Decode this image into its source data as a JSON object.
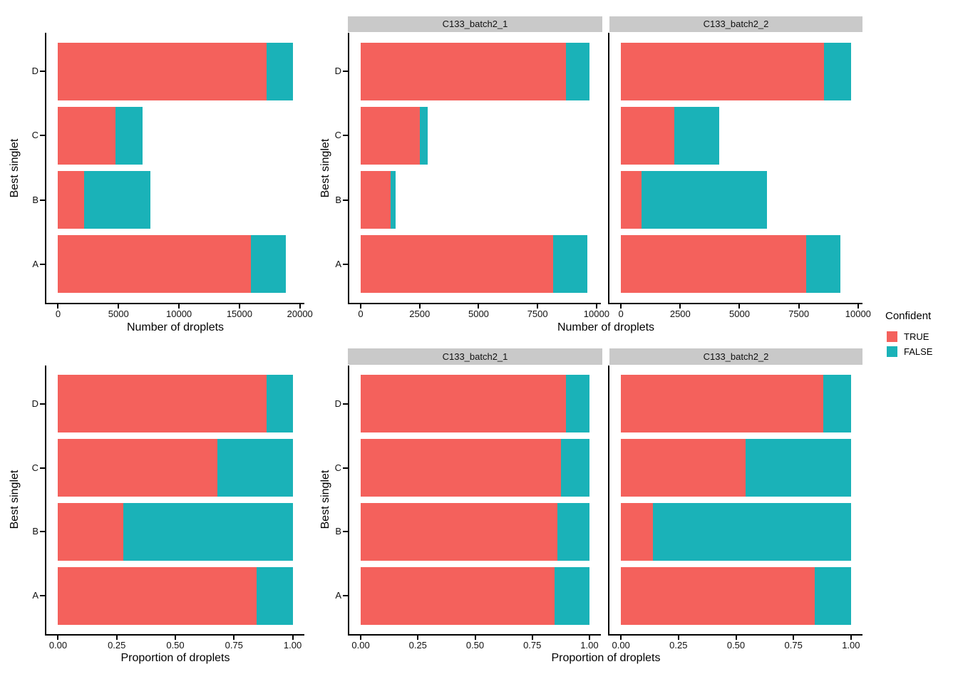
{
  "figure": {
    "background": "#FFFFFF",
    "strip_bg": "#C9C9C9",
    "axis_color": "#000000",
    "legend": {
      "title": "Confident",
      "items": [
        {
          "label": "TRUE",
          "color": "#F4615C"
        },
        {
          "label": "FALSE",
          "color": "#1AB2B8"
        }
      ]
    }
  },
  "plots": [
    {
      "xlabel": "Number of droplets",
      "ylabel": "Best singlet"
    },
    {
      "xlabel": "Number of droplets",
      "ylabel": "Best singlet"
    },
    {
      "xlabel": "Proportion of droplets",
      "ylabel": "Best singlet"
    },
    {
      "xlabel": "Proportion of droplets",
      "ylabel": "Best singlet"
    }
  ],
  "chart_data": [
    {
      "id": "counts-all",
      "type": "bar",
      "orientation": "horizontal",
      "stacked": true,
      "facet": "",
      "xlabel": "Number of droplets",
      "ylabel": "Best singlet",
      "categories_top_to_bottom": [
        "D",
        "C",
        "B",
        "A"
      ],
      "series": [
        {
          "name": "TRUE",
          "color": "#F4615C",
          "values": [
            17250,
            4750,
            2130,
            15950
          ]
        },
        {
          "name": "FALSE",
          "color": "#1AB2B8",
          "values": [
            2150,
            2250,
            5495,
            2900
          ]
        }
      ],
      "x_ticks": {
        "values": [
          0,
          5000,
          10000,
          15000,
          20000
        ],
        "labels": [
          "0",
          "5000",
          "10000",
          "15000",
          "20000"
        ]
      },
      "x_data_max": 19400,
      "legend_position": "right",
      "grid": false
    },
    {
      "id": "counts-batch1",
      "type": "bar",
      "orientation": "horizontal",
      "stacked": true,
      "facet": "C133_batch2_1",
      "xlabel": "Number of droplets",
      "ylabel": "Best singlet",
      "categories_top_to_bottom": [
        "D",
        "C",
        "B",
        "A"
      ],
      "series": [
        {
          "name": "TRUE",
          "color": "#F4615C",
          "values": [
            8700,
            2500,
            1270,
            8150
          ]
        },
        {
          "name": "FALSE",
          "color": "#1AB2B8",
          "values": [
            1000,
            350,
            205,
            1450
          ]
        }
      ],
      "x_ticks": {
        "values": [
          0,
          2500,
          5000,
          7500,
          10000
        ],
        "labels": [
          "0",
          "2500",
          "5000",
          "7500",
          "10000"
        ]
      },
      "x_data_max": 9700,
      "grid": false
    },
    {
      "id": "counts-batch2",
      "type": "bar",
      "orientation": "horizontal",
      "stacked": true,
      "facet": "C133_batch2_2",
      "xlabel": "Number of droplets",
      "ylabel": "",
      "categories_top_to_bottom": [
        "D",
        "C",
        "B",
        "A"
      ],
      "series": [
        {
          "name": "TRUE",
          "color": "#F4615C",
          "values": [
            8550,
            2250,
            860,
            7800
          ]
        },
        {
          "name": "FALSE",
          "color": "#1AB2B8",
          "values": [
            1150,
            1900,
            5290,
            1450
          ]
        }
      ],
      "x_ticks": {
        "values": [
          0,
          2500,
          5000,
          7500,
          10000
        ],
        "labels": [
          "0",
          "2500",
          "5000",
          "7500",
          "10000"
        ]
      },
      "x_data_max": 9700,
      "grid": false
    },
    {
      "id": "prop-all",
      "type": "bar",
      "orientation": "horizontal",
      "stacked": true,
      "facet": "",
      "xlabel": "Proportion of droplets",
      "ylabel": "Best singlet",
      "categories_top_to_bottom": [
        "D",
        "C",
        "B",
        "A"
      ],
      "series": [
        {
          "name": "TRUE",
          "color": "#F4615C",
          "values": [
            0.889,
            0.679,
            0.279,
            0.846
          ]
        },
        {
          "name": "FALSE",
          "color": "#1AB2B8",
          "values": [
            0.111,
            0.321,
            0.721,
            0.154
          ]
        }
      ],
      "x_ticks": {
        "values": [
          0,
          0.25,
          0.5,
          0.75,
          1
        ],
        "labels": [
          "0.00",
          "0.25",
          "0.50",
          "0.75",
          "1.00"
        ]
      },
      "x_data_max": 1,
      "grid": false
    },
    {
      "id": "prop-batch1",
      "type": "bar",
      "orientation": "horizontal",
      "stacked": true,
      "facet": "C133_batch2_1",
      "xlabel": "Proportion of droplets",
      "ylabel": "Best singlet",
      "categories_top_to_bottom": [
        "D",
        "C",
        "B",
        "A"
      ],
      "series": [
        {
          "name": "TRUE",
          "color": "#F4615C",
          "values": [
            0.897,
            0.877,
            0.861,
            0.849
          ]
        },
        {
          "name": "FALSE",
          "color": "#1AB2B8",
          "values": [
            0.103,
            0.123,
            0.139,
            0.151
          ]
        }
      ],
      "x_ticks": {
        "values": [
          0,
          0.25,
          0.5,
          0.75,
          1
        ],
        "labels": [
          "0.00",
          "0.25",
          "0.50",
          "0.75",
          "1.00"
        ]
      },
      "x_data_max": 1,
      "grid": false
    },
    {
      "id": "prop-batch2",
      "type": "bar",
      "orientation": "horizontal",
      "stacked": true,
      "facet": "C133_batch2_2",
      "xlabel": "Proportion of droplets",
      "ylabel": "",
      "categories_top_to_bottom": [
        "D",
        "C",
        "B",
        "A"
      ],
      "series": [
        {
          "name": "TRUE",
          "color": "#F4615C",
          "values": [
            0.881,
            0.542,
            0.14,
            0.843
          ]
        },
        {
          "name": "FALSE",
          "color": "#1AB2B8",
          "values": [
            0.119,
            0.458,
            0.86,
            0.157
          ]
        }
      ],
      "x_ticks": {
        "values": [
          0,
          0.25,
          0.5,
          0.75,
          1
        ],
        "labels": [
          "0.00",
          "0.25",
          "0.50",
          "0.75",
          "1.00"
        ]
      },
      "x_data_max": 1,
      "grid": false
    }
  ]
}
